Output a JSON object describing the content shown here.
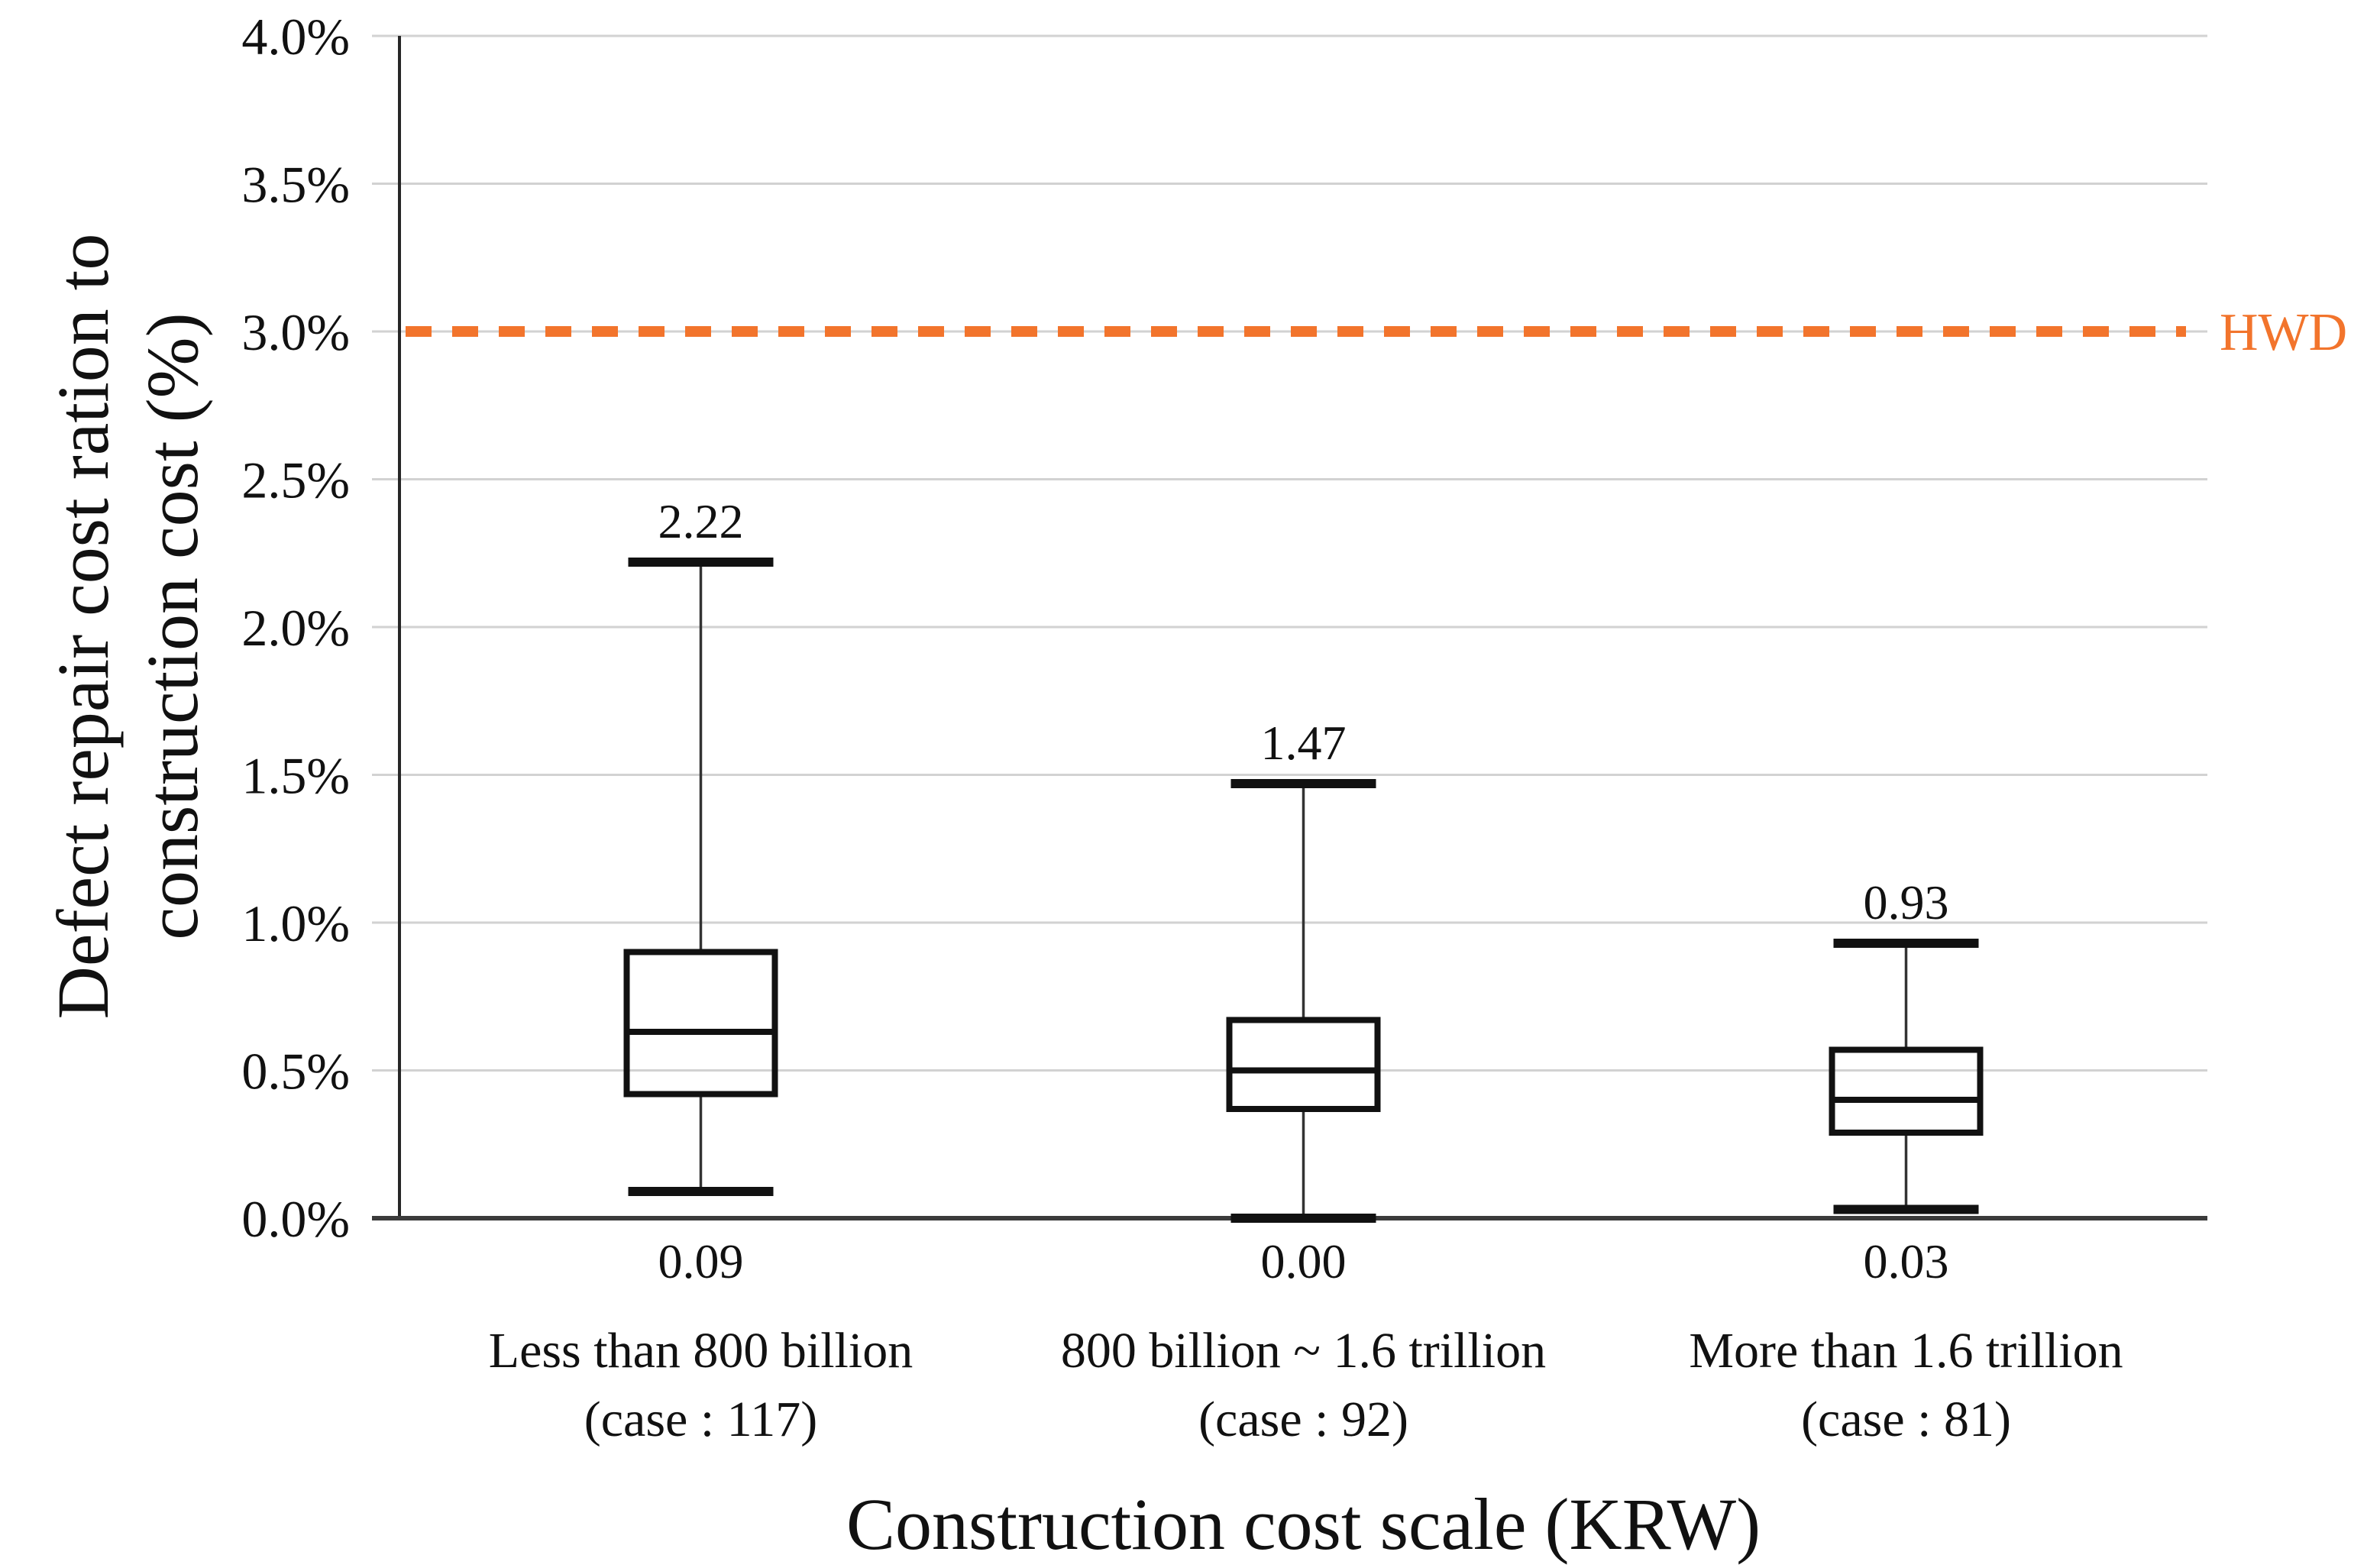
{
  "chart_data": {
    "type": "boxplot",
    "title": "",
    "y_axis": {
      "label_lines": [
        "Defect repair cost ration to",
        "construction cost (%)"
      ],
      "ticks": [
        "4.0%",
        "3.5%",
        "3.0%",
        "2.5%",
        "2.0%",
        "1.5%",
        "1.0%",
        "0.5%",
        "0.0%"
      ],
      "min": 0,
      "max": 4,
      "step": 0.5,
      "unit": "%",
      "grid": true
    },
    "x_axis": {
      "title": "Construction cost scale (KRW)"
    },
    "reference_line": {
      "label": "HWD",
      "value": 3.0,
      "color": "#F2742C",
      "style": "dotted"
    },
    "colors": {
      "box_stroke": "#111111",
      "median_stroke": "#111111",
      "whisker_stroke": "#333333",
      "grid": "#D2D2D2",
      "x_axis_line": "#3B3B3B",
      "y_axis_line": "#262626",
      "text": "#111111"
    },
    "series": [
      {
        "category_line1": "Less than 800 billion",
        "category_line2": "(case : 117)",
        "cases": 117,
        "whisker_max": 2.22,
        "q3": 0.9,
        "median": 0.63,
        "q1": 0.42,
        "whisker_min": 0.09,
        "max_label": "2.22",
        "min_label": "0.09"
      },
      {
        "category_line1": "800 billion ~ 1.6 trillion",
        "category_line2": "(case : 92)",
        "cases": 92,
        "whisker_max": 1.47,
        "q3": 0.67,
        "median": 0.5,
        "q1": 0.37,
        "whisker_min": 0.0,
        "max_label": "1.47",
        "min_label": "0.00"
      },
      {
        "category_line1": "More than 1.6 trillion",
        "category_line2": "(case : 81)",
        "cases": 81,
        "whisker_max": 0.93,
        "q3": 0.57,
        "median": 0.4,
        "q1": 0.29,
        "whisker_min": 0.03,
        "max_label": "0.93",
        "min_label": "0.03"
      }
    ]
  }
}
